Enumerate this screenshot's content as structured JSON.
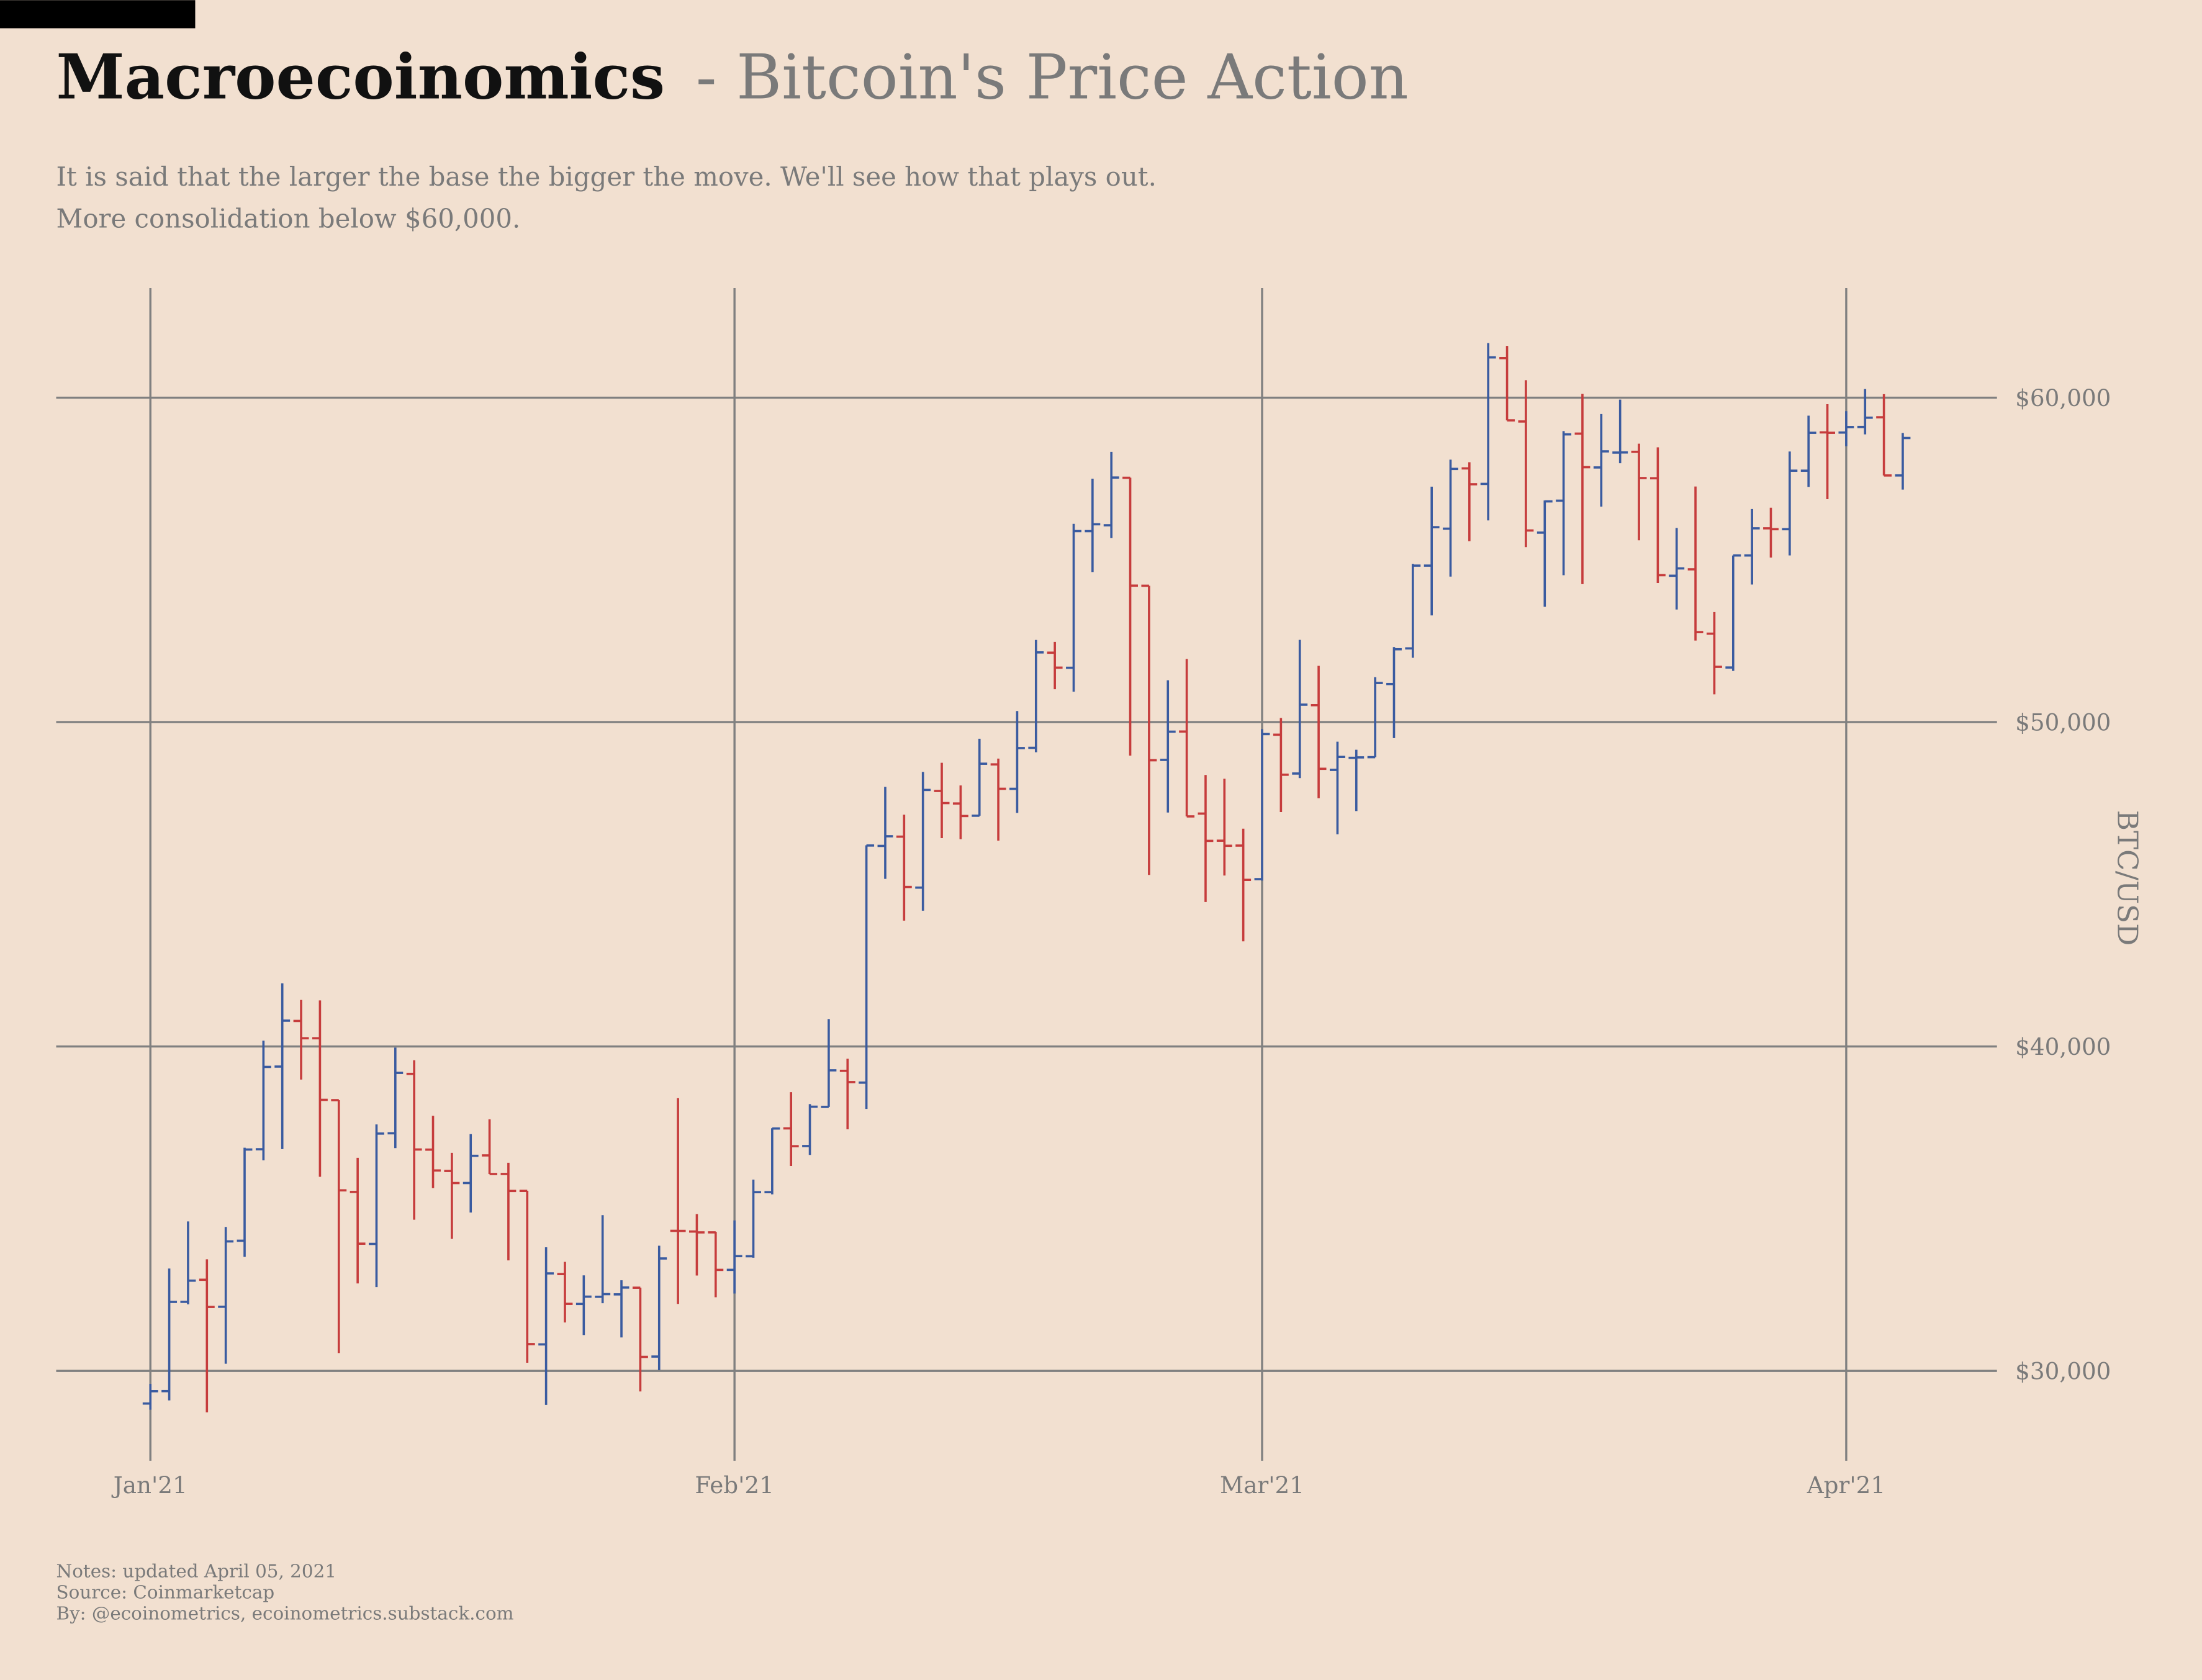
{
  "chart_data": {
    "type": "ohlc",
    "title": "Macroecoinomics",
    "title_suffix": "- Bitcoin's Price Action",
    "subtitle": [
      "It is said that the larger the base the bigger the move. We'll see how that plays out.",
      "More consolidation below $60,000."
    ],
    "ylabel": "BTC/USD",
    "notes": [
      "Notes: updated April 05, 2021",
      "Source: Coinmarketcap",
      "By: @ecoinometrics, ecoinometrics.substack.com"
    ],
    "ylim": [
      27230,
      63380
    ],
    "yticks": [
      {
        "value": 30000,
        "label": "$30,000"
      },
      {
        "value": 40000,
        "label": "$40,000"
      },
      {
        "value": 50000,
        "label": "$50,000"
      },
      {
        "value": 60000,
        "label": "$60,000"
      }
    ],
    "xlim": [
      "2020-12-27",
      "2021-04-09"
    ],
    "xticks": [
      {
        "value": "2021-01-01",
        "label": "Jan'21"
      },
      {
        "value": "2021-02-01",
        "label": "Feb'21"
      },
      {
        "value": "2021-03-01",
        "label": "Mar'21"
      },
      {
        "value": "2021-04-01",
        "label": "Apr'21"
      }
    ],
    "grid": true,
    "up_color": "#3a5ba0",
    "down_color": "#c63c3c",
    "x": [
      "2021-01-01",
      "2021-01-02",
      "2021-01-03",
      "2021-01-04",
      "2021-01-05",
      "2021-01-06",
      "2021-01-07",
      "2021-01-08",
      "2021-01-09",
      "2021-01-10",
      "2021-01-11",
      "2021-01-12",
      "2021-01-13",
      "2021-01-14",
      "2021-01-15",
      "2021-01-16",
      "2021-01-17",
      "2021-01-18",
      "2021-01-19",
      "2021-01-20",
      "2021-01-21",
      "2021-01-22",
      "2021-01-23",
      "2021-01-24",
      "2021-01-25",
      "2021-01-26",
      "2021-01-27",
      "2021-01-28",
      "2021-01-29",
      "2021-01-30",
      "2021-01-31",
      "2021-02-01",
      "2021-02-02",
      "2021-02-03",
      "2021-02-04",
      "2021-02-05",
      "2021-02-06",
      "2021-02-07",
      "2021-02-08",
      "2021-02-09",
      "2021-02-10",
      "2021-02-11",
      "2021-02-12",
      "2021-02-13",
      "2021-02-14",
      "2021-02-15",
      "2021-02-16",
      "2021-02-17",
      "2021-02-18",
      "2021-02-19",
      "2021-02-20",
      "2021-02-21",
      "2021-02-22",
      "2021-02-23",
      "2021-02-24",
      "2021-02-25",
      "2021-02-26",
      "2021-02-27",
      "2021-02-28",
      "2021-03-01",
      "2021-03-02",
      "2021-03-03",
      "2021-03-04",
      "2021-03-05",
      "2021-03-06",
      "2021-03-07",
      "2021-03-08",
      "2021-03-09",
      "2021-03-10",
      "2021-03-11",
      "2021-03-12",
      "2021-03-13",
      "2021-03-14",
      "2021-03-15",
      "2021-03-16",
      "2021-03-17",
      "2021-03-18",
      "2021-03-19",
      "2021-03-20",
      "2021-03-21",
      "2021-03-22",
      "2021-03-23",
      "2021-03-24",
      "2021-03-25",
      "2021-03-26",
      "2021-03-27",
      "2021-03-28",
      "2021-03-29",
      "2021-03-30",
      "2021-03-31",
      "2021-04-01",
      "2021-04-02",
      "2021-04-03",
      "2021-04-04"
    ],
    "open": [
      28994,
      29376,
      32129,
      32810,
      31977,
      34013,
      36833,
      39381,
      40788,
      40254,
      38346,
      35516,
      33915,
      37325,
      39156,
      36821,
      36163,
      35792,
      36643,
      36070,
      35549,
      30817,
      32985,
      32064,
      32285,
      32359,
      32564,
      30442,
      34318,
      34296,
      34271,
      33115,
      33534,
      35510,
      37476,
      36931,
      38138,
      39250,
      38886,
      46184,
      46469,
      44898,
      47877,
      47491,
      47114,
      48696,
      47944,
      49207,
      52140,
      51675,
      55887,
      56068,
      57532,
      54204,
      48835,
      49709,
      47180,
      46344,
      46194,
      45159,
      49612,
      48415,
      50522,
      48527,
      48899,
      48919,
      51174,
      52272,
      54824,
      55963,
      57821,
      57343,
      61221,
      59267,
      55841,
      56826,
      58893,
      57850,
      58309,
      58332,
      57517,
      54512,
      54710,
      52726,
      51683,
      55137,
      55974,
      55947,
      57750,
      58931,
      58926,
      59098,
      59397,
      57604
    ],
    "high": [
      29600,
      33155,
      34608,
      33440,
      34437,
      36879,
      40180,
      41946,
      41436,
      41420,
      38346,
      36568,
      37599,
      39966,
      39577,
      37864,
      36722,
      37299,
      37755,
      36415,
      35553,
      33811,
      33360,
      32944,
      34802,
      32794,
      32564,
      33858,
      38406,
      34834,
      34288,
      34638,
      35896,
      37480,
      38592,
      38225,
      40846,
      39621,
      46203,
      48003,
      47145,
      48463,
      48745,
      48047,
      49487,
      48875,
      50341,
      52533,
      52474,
      56113,
      57505,
      58330,
      57533,
      54204,
      51290,
      51948,
      48370,
      48253,
      46716,
      49784,
      50127,
      52535,
      51735,
      49396,
      49147,
      51384,
      52314,
      54877,
      57258,
      58091,
      58011,
      61683,
      61597,
      60540,
      56833,
      58970,
      60116,
      59498,
      59941,
      58583,
      58471,
      55985,
      57262,
      53392,
      55137,
      56568,
      56610,
      58342,
      59447,
      59800,
      59586,
      60267,
      60110,
      58913
    ],
    "low": [
      28803,
      29091,
      32052,
      28722,
      30221,
      33514,
      36491,
      36838,
      38980,
      35984,
      30549,
      32697,
      32584,
      36868,
      34659,
      35633,
      34069,
      34883,
      36069,
      33407,
      30250,
      28953,
      31493,
      31106,
      32087,
      31030,
      29367,
      30023,
      32064,
      32940,
      32270,
      32384,
      33489,
      35443,
      36317,
      36658,
      38138,
      37446,
      38076,
      45166,
      43881,
      44187,
      46424,
      46392,
      47114,
      46347,
      47201,
      49072,
      51015,
      50937,
      54626,
      55672,
      48967,
      45290,
      47213,
      47093,
      44454,
      45269,
      43241,
      45115,
      47228,
      48274,
      47656,
      46542,
      47257,
      48918,
      49506,
      51982,
      53290,
      54485,
      55578,
      56217,
      59302,
      55394,
      53555,
      54528,
      54253,
      56643,
      57981,
      55604,
      54288,
      53470,
      52514,
      50856,
      51579,
      54242,
      55071,
      55139,
      57251,
      56873,
      58505,
      58870,
      57603,
      57168
    ],
    "close": [
      29374,
      32127,
      32782,
      31971,
      33992,
      36824,
      39371,
      40797,
      40254,
      38356,
      35566,
      33922,
      37316,
      39187,
      36825,
      36178,
      35791,
      36630,
      36069,
      35547,
      30826,
      33006,
      32067,
      32289,
      32366,
      32570,
      30432,
      33466,
      34316,
      34270,
      33114,
      33538,
      35510,
      37472,
      36926,
      38144,
      39266,
      38903,
      46196,
      46481,
      44918,
      47909,
      47504,
      47105,
      48717,
      47945,
      49199,
      52149,
      51679,
      55888,
      56099,
      57539,
      54207,
      48824,
      49705,
      47093,
      46339,
      46188,
      45137,
      49631,
      48378,
      50538,
      48561,
      48927,
      48912,
      51206,
      52246,
      54824,
      56008,
      57805,
      57332,
      61243,
      59302,
      55907,
      56804,
      58870,
      57858,
      58346,
      58313,
      57523,
      54529,
      54738,
      52774,
      51704,
      55137,
      55974,
      55947,
      57750,
      58918,
      58918,
      59095,
      59384,
      57603,
      58758
    ]
  }
}
